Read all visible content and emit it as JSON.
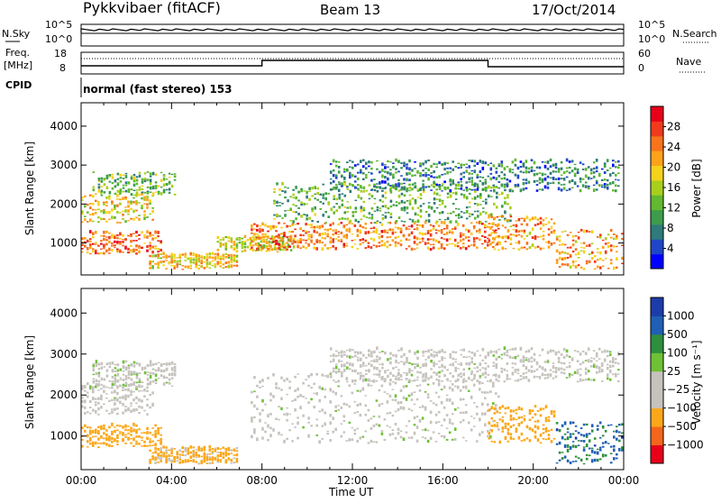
{
  "header": {
    "radar": "Pykkvibaer (fitACF)",
    "beam": "Beam 13",
    "date": "17/Oct/2014"
  },
  "top_panels": {
    "nsky_label": "N.Sky",
    "nsearch_label": "N.Search",
    "noise_ticks": [
      "10^5",
      "10^0"
    ],
    "freq_label_1": "Freq.",
    "freq_label_2": "[MHz]",
    "freq_ticks": [
      "18",
      "8"
    ],
    "nave_label": "Nave",
    "nave_ticks": [
      "60",
      "0"
    ],
    "cpid_label": "CPID",
    "cpid_text": "normal (fast stereo) 153"
  },
  "colorbars": {
    "power_label": "Power [dB]",
    "power_ticks": [
      "28",
      "24",
      "20",
      "16",
      "12",
      "8",
      "4"
    ],
    "velocity_label": "Velocity [m s⁻¹]",
    "velocity_ticks": [
      "1000",
      "500",
      "100",
      "25",
      "−25",
      "−100",
      "−500",
      "−1000"
    ],
    "power_colors": [
      "#0000ff",
      "#1f46c8",
      "#2f7a7a",
      "#3d9c4c",
      "#62b830",
      "#a8cf1c",
      "#f5d21c",
      "#fca31a",
      "#f7741d",
      "#ef3a1c",
      "#e8001a"
    ],
    "velocity_colors": [
      "#e8001a",
      "#f4661b",
      "#fba71a",
      "#c6c3bd",
      "#c6c3bd",
      "#6fc136",
      "#2e8f3e",
      "#1f5fb4",
      "#1c3caa"
    ]
  },
  "chart_data": {
    "type": "heatmap",
    "x_axis": {
      "label": "Time UT",
      "ticks": [
        "00:00",
        "04:00",
        "08:00",
        "12:00",
        "16:00",
        "20:00",
        "00:00"
      ],
      "range_hours": [
        0,
        24
      ]
    },
    "y_axis": {
      "label": "Slant Range [km]",
      "ticks": [
        "1000",
        "2000",
        "3000",
        "4000"
      ],
      "range_km": [
        180,
        4600
      ]
    },
    "power_panel": {
      "colorbar": "Power [dB]",
      "range_db": [
        0,
        32
      ],
      "echo_regions": [
        {
          "t0": 0.0,
          "t1": 3.6,
          "r0": 700,
          "r1": 1250,
          "db": 25
        },
        {
          "t0": 0.0,
          "t1": 3.2,
          "r0": 1500,
          "r1": 2250,
          "db": 19
        },
        {
          "t0": 0.5,
          "t1": 4.2,
          "r0": 2200,
          "r1": 2800,
          "db": 13
        },
        {
          "t0": 3.0,
          "t1": 7.0,
          "r0": 300,
          "r1": 700,
          "db": 20
        },
        {
          "t0": 6.0,
          "t1": 9.5,
          "r0": 750,
          "r1": 1150,
          "db": 18
        },
        {
          "t0": 7.5,
          "t1": 18.5,
          "r0": 800,
          "r1": 1500,
          "db": 24
        },
        {
          "t0": 8.5,
          "t1": 19.0,
          "r0": 1500,
          "r1": 2500,
          "db": 12
        },
        {
          "t0": 11.0,
          "t1": 23.8,
          "r0": 2300,
          "r1": 3100,
          "db": 8
        },
        {
          "t0": 18.0,
          "t1": 21.0,
          "r0": 800,
          "r1": 1700,
          "db": 23
        },
        {
          "t0": 21.0,
          "t1": 24.0,
          "r0": 300,
          "r1": 1300,
          "db": 22
        }
      ]
    },
    "velocity_panel": {
      "colorbar": "Velocity [m s⁻¹]",
      "range_ms": [
        -1000,
        1000
      ],
      "echo_regions": [
        {
          "t0": 0.0,
          "t1": 3.2,
          "r0": 1500,
          "r1": 2250,
          "v": 0
        },
        {
          "t0": 0.5,
          "t1": 4.2,
          "r0": 2200,
          "r1": 2800,
          "v": 5
        },
        {
          "t0": 0.0,
          "t1": 3.6,
          "r0": 700,
          "r1": 1250,
          "v": -150
        },
        {
          "t0": 3.0,
          "t1": 7.0,
          "r0": 300,
          "r1": 700,
          "v": -120
        },
        {
          "t0": 7.5,
          "t1": 18.5,
          "r0": 800,
          "r1": 2500,
          "v": 0
        },
        {
          "t0": 11.0,
          "t1": 23.8,
          "r0": 2300,
          "r1": 3100,
          "v": 0
        },
        {
          "t0": 18.0,
          "t1": 21.0,
          "r0": 800,
          "r1": 1700,
          "v": -200
        },
        {
          "t0": 21.0,
          "t1": 24.0,
          "r0": 300,
          "r1": 1300,
          "v": 600
        }
      ]
    }
  }
}
